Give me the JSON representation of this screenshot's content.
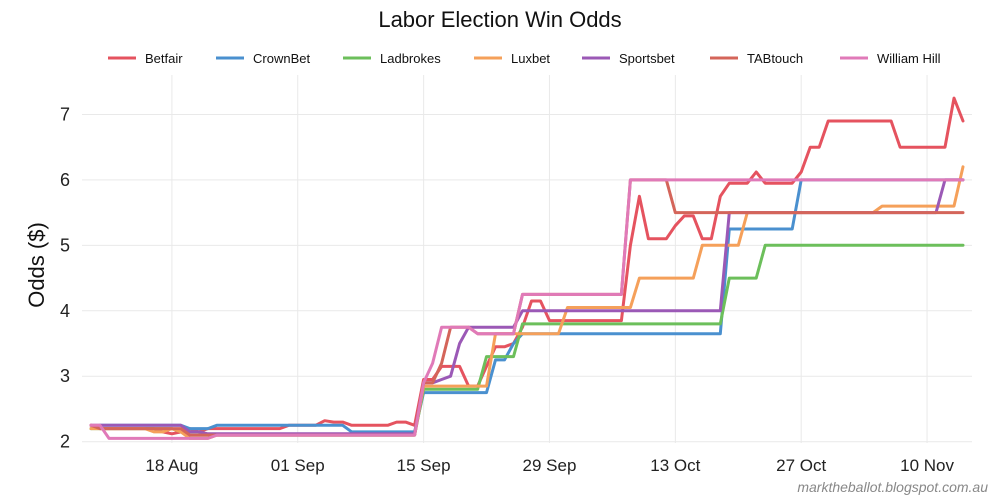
{
  "chart_data": {
    "type": "line",
    "title": "Labor Election Win Odds",
    "xlabel": "",
    "ylabel": "Odds ($)",
    "x_ticks": [
      "18 Aug",
      "01 Sep",
      "15 Sep",
      "29 Sep",
      "13 Oct",
      "27 Oct",
      "10 Nov"
    ],
    "x_tick_days": [
      18,
      32,
      46,
      60,
      74,
      88,
      102
    ],
    "x_range_days": [
      8,
      107
    ],
    "ylim": [
      1.98,
      7.45
    ],
    "yticks": [
      2,
      3,
      4,
      5,
      6,
      7
    ],
    "grid": true,
    "legend_position": "top",
    "watermark": "marktheballot.blogspot.com.au",
    "series": [
      {
        "name": "Betfair",
        "color": "#e5535f",
        "points": [
          [
            9,
            2.25
          ],
          [
            10,
            2.2
          ],
          [
            11,
            2.2
          ],
          [
            12,
            2.2
          ],
          [
            13,
            2.2
          ],
          [
            14,
            2.2
          ],
          [
            15,
            2.2
          ],
          [
            16,
            2.2
          ],
          [
            17,
            2.15
          ],
          [
            18,
            2.12
          ],
          [
            19,
            2.15
          ],
          [
            20,
            2.2
          ],
          [
            21,
            2.15
          ],
          [
            22,
            2.2
          ],
          [
            23,
            2.2
          ],
          [
            24,
            2.2
          ],
          [
            25,
            2.2
          ],
          [
            26,
            2.2
          ],
          [
            27,
            2.2
          ],
          [
            28,
            2.2
          ],
          [
            29,
            2.2
          ],
          [
            30,
            2.2
          ],
          [
            31,
            2.25
          ],
          [
            32,
            2.25
          ],
          [
            33,
            2.25
          ],
          [
            34,
            2.25
          ],
          [
            35,
            2.32
          ],
          [
            36,
            2.3
          ],
          [
            37,
            2.3
          ],
          [
            38,
            2.25
          ],
          [
            39,
            2.25
          ],
          [
            40,
            2.25
          ],
          [
            41,
            2.25
          ],
          [
            42,
            2.25
          ],
          [
            43,
            2.3
          ],
          [
            44,
            2.3
          ],
          [
            45,
            2.25
          ],
          [
            46,
            2.95
          ],
          [
            47,
            2.95
          ],
          [
            48,
            3.15
          ],
          [
            49,
            3.15
          ],
          [
            50,
            3.15
          ],
          [
            51,
            2.85
          ],
          [
            52,
            2.85
          ],
          [
            53,
            3.15
          ],
          [
            54,
            3.45
          ],
          [
            55,
            3.45
          ],
          [
            56,
            3.5
          ],
          [
            57,
            3.75
          ],
          [
            58,
            4.15
          ],
          [
            59,
            4.15
          ],
          [
            60,
            3.85
          ],
          [
            61,
            3.85
          ],
          [
            62,
            3.85
          ],
          [
            63,
            3.85
          ],
          [
            64,
            3.85
          ],
          [
            65,
            3.85
          ],
          [
            66,
            3.85
          ],
          [
            67,
            3.85
          ],
          [
            68,
            3.85
          ],
          [
            69,
            5.0
          ],
          [
            70,
            5.75
          ],
          [
            71,
            5.1
          ],
          [
            72,
            5.1
          ],
          [
            73,
            5.1
          ],
          [
            74,
            5.3
          ],
          [
            75,
            5.45
          ],
          [
            76,
            5.45
          ],
          [
            77,
            5.1
          ],
          [
            78,
            5.1
          ],
          [
            79,
            5.75
          ],
          [
            80,
            5.95
          ],
          [
            81,
            5.95
          ],
          [
            82,
            5.95
          ],
          [
            83,
            6.12
          ],
          [
            84,
            5.95
          ],
          [
            85,
            5.95
          ],
          [
            86,
            5.95
          ],
          [
            87,
            5.95
          ],
          [
            88,
            6.12
          ],
          [
            89,
            6.5
          ],
          [
            90,
            6.5
          ],
          [
            91,
            6.9
          ],
          [
            92,
            6.9
          ],
          [
            93,
            6.9
          ],
          [
            94,
            6.9
          ],
          [
            95,
            6.9
          ],
          [
            96,
            6.9
          ],
          [
            97,
            6.9
          ],
          [
            98,
            6.9
          ],
          [
            99,
            6.5
          ],
          [
            100,
            6.5
          ],
          [
            101,
            6.5
          ],
          [
            102,
            6.5
          ],
          [
            103,
            6.5
          ],
          [
            104,
            6.5
          ],
          [
            105,
            7.25
          ],
          [
            106,
            6.9
          ]
        ]
      },
      {
        "name": "CrownBet",
        "color": "#4a90cf",
        "points": [
          [
            9,
            2.2
          ],
          [
            10,
            2.25
          ],
          [
            11,
            2.25
          ],
          [
            18,
            2.25
          ],
          [
            19,
            2.25
          ],
          [
            20,
            2.2
          ],
          [
            22,
            2.2
          ],
          [
            23,
            2.25
          ],
          [
            37,
            2.25
          ],
          [
            38,
            2.15
          ],
          [
            45,
            2.15
          ],
          [
            46,
            2.75
          ],
          [
            53,
            2.75
          ],
          [
            54,
            3.25
          ],
          [
            55,
            3.25
          ],
          [
            56,
            3.5
          ],
          [
            57,
            3.65
          ],
          [
            75,
            3.65
          ],
          [
            76,
            3.65
          ],
          [
            77,
            3.65
          ],
          [
            78,
            3.65
          ],
          [
            79,
            3.65
          ],
          [
            80,
            5.25
          ],
          [
            85,
            5.25
          ],
          [
            86,
            5.25
          ],
          [
            87,
            5.25
          ],
          [
            88,
            6.0
          ],
          [
            106,
            6.0
          ]
        ]
      },
      {
        "name": "Ladbrokes",
        "color": "#6cbf5b",
        "points": [
          [
            9,
            2.2
          ],
          [
            10,
            2.2
          ],
          [
            11,
            2.2
          ],
          [
            12,
            2.2
          ],
          [
            13,
            2.2
          ],
          [
            14,
            2.2
          ],
          [
            15,
            2.2
          ],
          [
            16,
            2.2
          ],
          [
            17,
            2.2
          ],
          [
            18,
            2.2
          ],
          [
            19,
            2.15
          ],
          [
            20,
            2.1
          ],
          [
            44,
            2.1
          ],
          [
            45,
            2.1
          ],
          [
            46,
            2.8
          ],
          [
            51,
            2.8
          ],
          [
            52,
            2.8
          ],
          [
            53,
            3.3
          ],
          [
            55,
            3.3
          ],
          [
            56,
            3.3
          ],
          [
            57,
            3.8
          ],
          [
            79,
            3.8
          ],
          [
            80,
            4.5
          ],
          [
            83,
            4.5
          ],
          [
            84,
            5.0
          ],
          [
            106,
            5.0
          ]
        ]
      },
      {
        "name": "Luxbet",
        "color": "#f5a05a",
        "points": [
          [
            9,
            2.2
          ],
          [
            10,
            2.2
          ],
          [
            15,
            2.2
          ],
          [
            16,
            2.15
          ],
          [
            17,
            2.15
          ],
          [
            18,
            2.2
          ],
          [
            19,
            2.15
          ],
          [
            20,
            2.05
          ],
          [
            22,
            2.05
          ],
          [
            23,
            2.1
          ],
          [
            44,
            2.1
          ],
          [
            45,
            2.1
          ],
          [
            46,
            2.85
          ],
          [
            53,
            2.85
          ],
          [
            54,
            3.65
          ],
          [
            59,
            3.65
          ],
          [
            60,
            3.65
          ],
          [
            61,
            3.65
          ],
          [
            62,
            4.05
          ],
          [
            68,
            4.05
          ],
          [
            69,
            4.05
          ],
          [
            70,
            4.5
          ],
          [
            76,
            4.5
          ],
          [
            77,
            5.0
          ],
          [
            81,
            5.0
          ],
          [
            82,
            5.5
          ],
          [
            96,
            5.5
          ],
          [
            97,
            5.6
          ],
          [
            105,
            5.6
          ],
          [
            106,
            6.2
          ]
        ]
      },
      {
        "name": "Sportsbet",
        "color": "#9b59b6",
        "points": [
          [
            9,
            2.25
          ],
          [
            10,
            2.25
          ],
          [
            18,
            2.25
          ],
          [
            19,
            2.25
          ],
          [
            20,
            2.15
          ],
          [
            21,
            2.15
          ],
          [
            22,
            2.12
          ],
          [
            23,
            2.12
          ],
          [
            44,
            2.12
          ],
          [
            45,
            2.12
          ],
          [
            46,
            2.9
          ],
          [
            47,
            2.9
          ],
          [
            48,
            2.95
          ],
          [
            49,
            3.0
          ],
          [
            50,
            3.5
          ],
          [
            51,
            3.75
          ],
          [
            54,
            3.75
          ],
          [
            55,
            3.75
          ],
          [
            56,
            3.75
          ],
          [
            57,
            4.0
          ],
          [
            79,
            4.0
          ],
          [
            80,
            5.5
          ],
          [
            102,
            5.5
          ],
          [
            103,
            5.5
          ],
          [
            104,
            6.0
          ],
          [
            106,
            6.0
          ]
        ]
      },
      {
        "name": "TABtouch",
        "color": "#d4655a",
        "points": [
          [
            9,
            2.25
          ],
          [
            10,
            2.2
          ],
          [
            18,
            2.2
          ],
          [
            19,
            2.2
          ],
          [
            20,
            2.1
          ],
          [
            44,
            2.1
          ],
          [
            45,
            2.1
          ],
          [
            46,
            2.9
          ],
          [
            47,
            2.9
          ],
          [
            48,
            3.2
          ],
          [
            49,
            3.75
          ],
          [
            51,
            3.75
          ],
          [
            52,
            3.65
          ],
          [
            54,
            3.65
          ],
          [
            55,
            3.65
          ],
          [
            56,
            3.65
          ],
          [
            57,
            4.25
          ],
          [
            68,
            4.25
          ],
          [
            69,
            6.0
          ],
          [
            73,
            6.0
          ],
          [
            74,
            5.5
          ],
          [
            106,
            5.5
          ]
        ]
      },
      {
        "name": "William Hill",
        "color": "#e07ab8",
        "points": [
          [
            9,
            2.25
          ],
          [
            10,
            2.25
          ],
          [
            11,
            2.05
          ],
          [
            12,
            2.05
          ],
          [
            18,
            2.05
          ],
          [
            19,
            2.05
          ],
          [
            20,
            2.05
          ],
          [
            21,
            2.05
          ],
          [
            22,
            2.05
          ],
          [
            23,
            2.1
          ],
          [
            44,
            2.1
          ],
          [
            45,
            2.1
          ],
          [
            46,
            2.9
          ],
          [
            47,
            3.2
          ],
          [
            48,
            3.75
          ],
          [
            51,
            3.75
          ],
          [
            52,
            3.65
          ],
          [
            55,
            3.65
          ],
          [
            56,
            3.65
          ],
          [
            57,
            4.25
          ],
          [
            68,
            4.25
          ],
          [
            69,
            6.0
          ],
          [
            106,
            6.0
          ]
        ]
      }
    ]
  }
}
